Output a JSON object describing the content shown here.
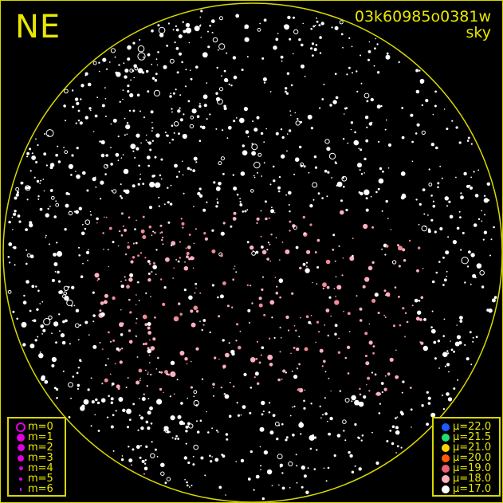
{
  "direction_label": "NE",
  "title": {
    "id": "03k60985o0381w",
    "subtitle": "sky"
  },
  "colors": {
    "frame": "#d8d800",
    "text": "#e8e800",
    "background": "#000000"
  },
  "magnitude_legend": [
    {
      "label": "m=0",
      "symbol": "ring",
      "color": "#e000e0"
    },
    {
      "label": "m=1",
      "color": "#e000e0"
    },
    {
      "label": "m=2",
      "color": "#e000e0"
    },
    {
      "label": "m=3",
      "color": "#e000e0"
    },
    {
      "label": "m=4",
      "color": "#e000e0"
    },
    {
      "label": "m=5",
      "color": "#e000e0"
    },
    {
      "label": "m=6",
      "color": "#e000e0"
    }
  ],
  "surface_brightness_legend": [
    {
      "label": "μ=22.0",
      "color": "#1f5cff"
    },
    {
      "label": "μ=21.5",
      "color": "#22dd77"
    },
    {
      "label": "μ=21.0",
      "color": "#ffd400"
    },
    {
      "label": "μ=20.0",
      "color": "#ff5a10"
    },
    {
      "label": "μ=19.0",
      "color": "#f06070"
    },
    {
      "label": "μ=18.0",
      "color": "#ffb0c0"
    },
    {
      "label": "μ=17.0",
      "color": "#ffffff"
    }
  ]
}
